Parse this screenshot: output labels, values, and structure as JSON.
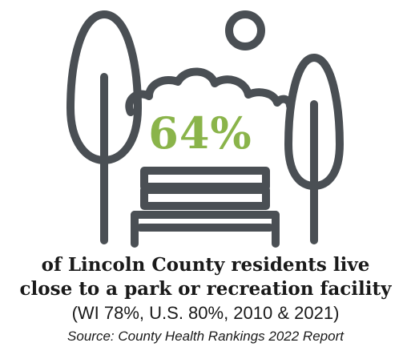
{
  "infographic": {
    "stat_value": "64%",
    "line1": "of Lincoln County residents live",
    "line2": "close to a park or recreation facility",
    "comparison": "(WI 78%, U.S. 80%, 2010 & 2021)",
    "source": "Source: County Health Rankings 2022 Report"
  },
  "colors": {
    "icon_stroke": "#4a4f54",
    "stat_green": "#8ab44a",
    "text": "#1a1a1a",
    "background": "#ffffff"
  },
  "icons": {
    "left_tree": "tree-icon",
    "right_tree": "tree-icon",
    "sun": "sun-icon",
    "clouds": "cloud-icon",
    "bench": "park-bench-icon"
  }
}
